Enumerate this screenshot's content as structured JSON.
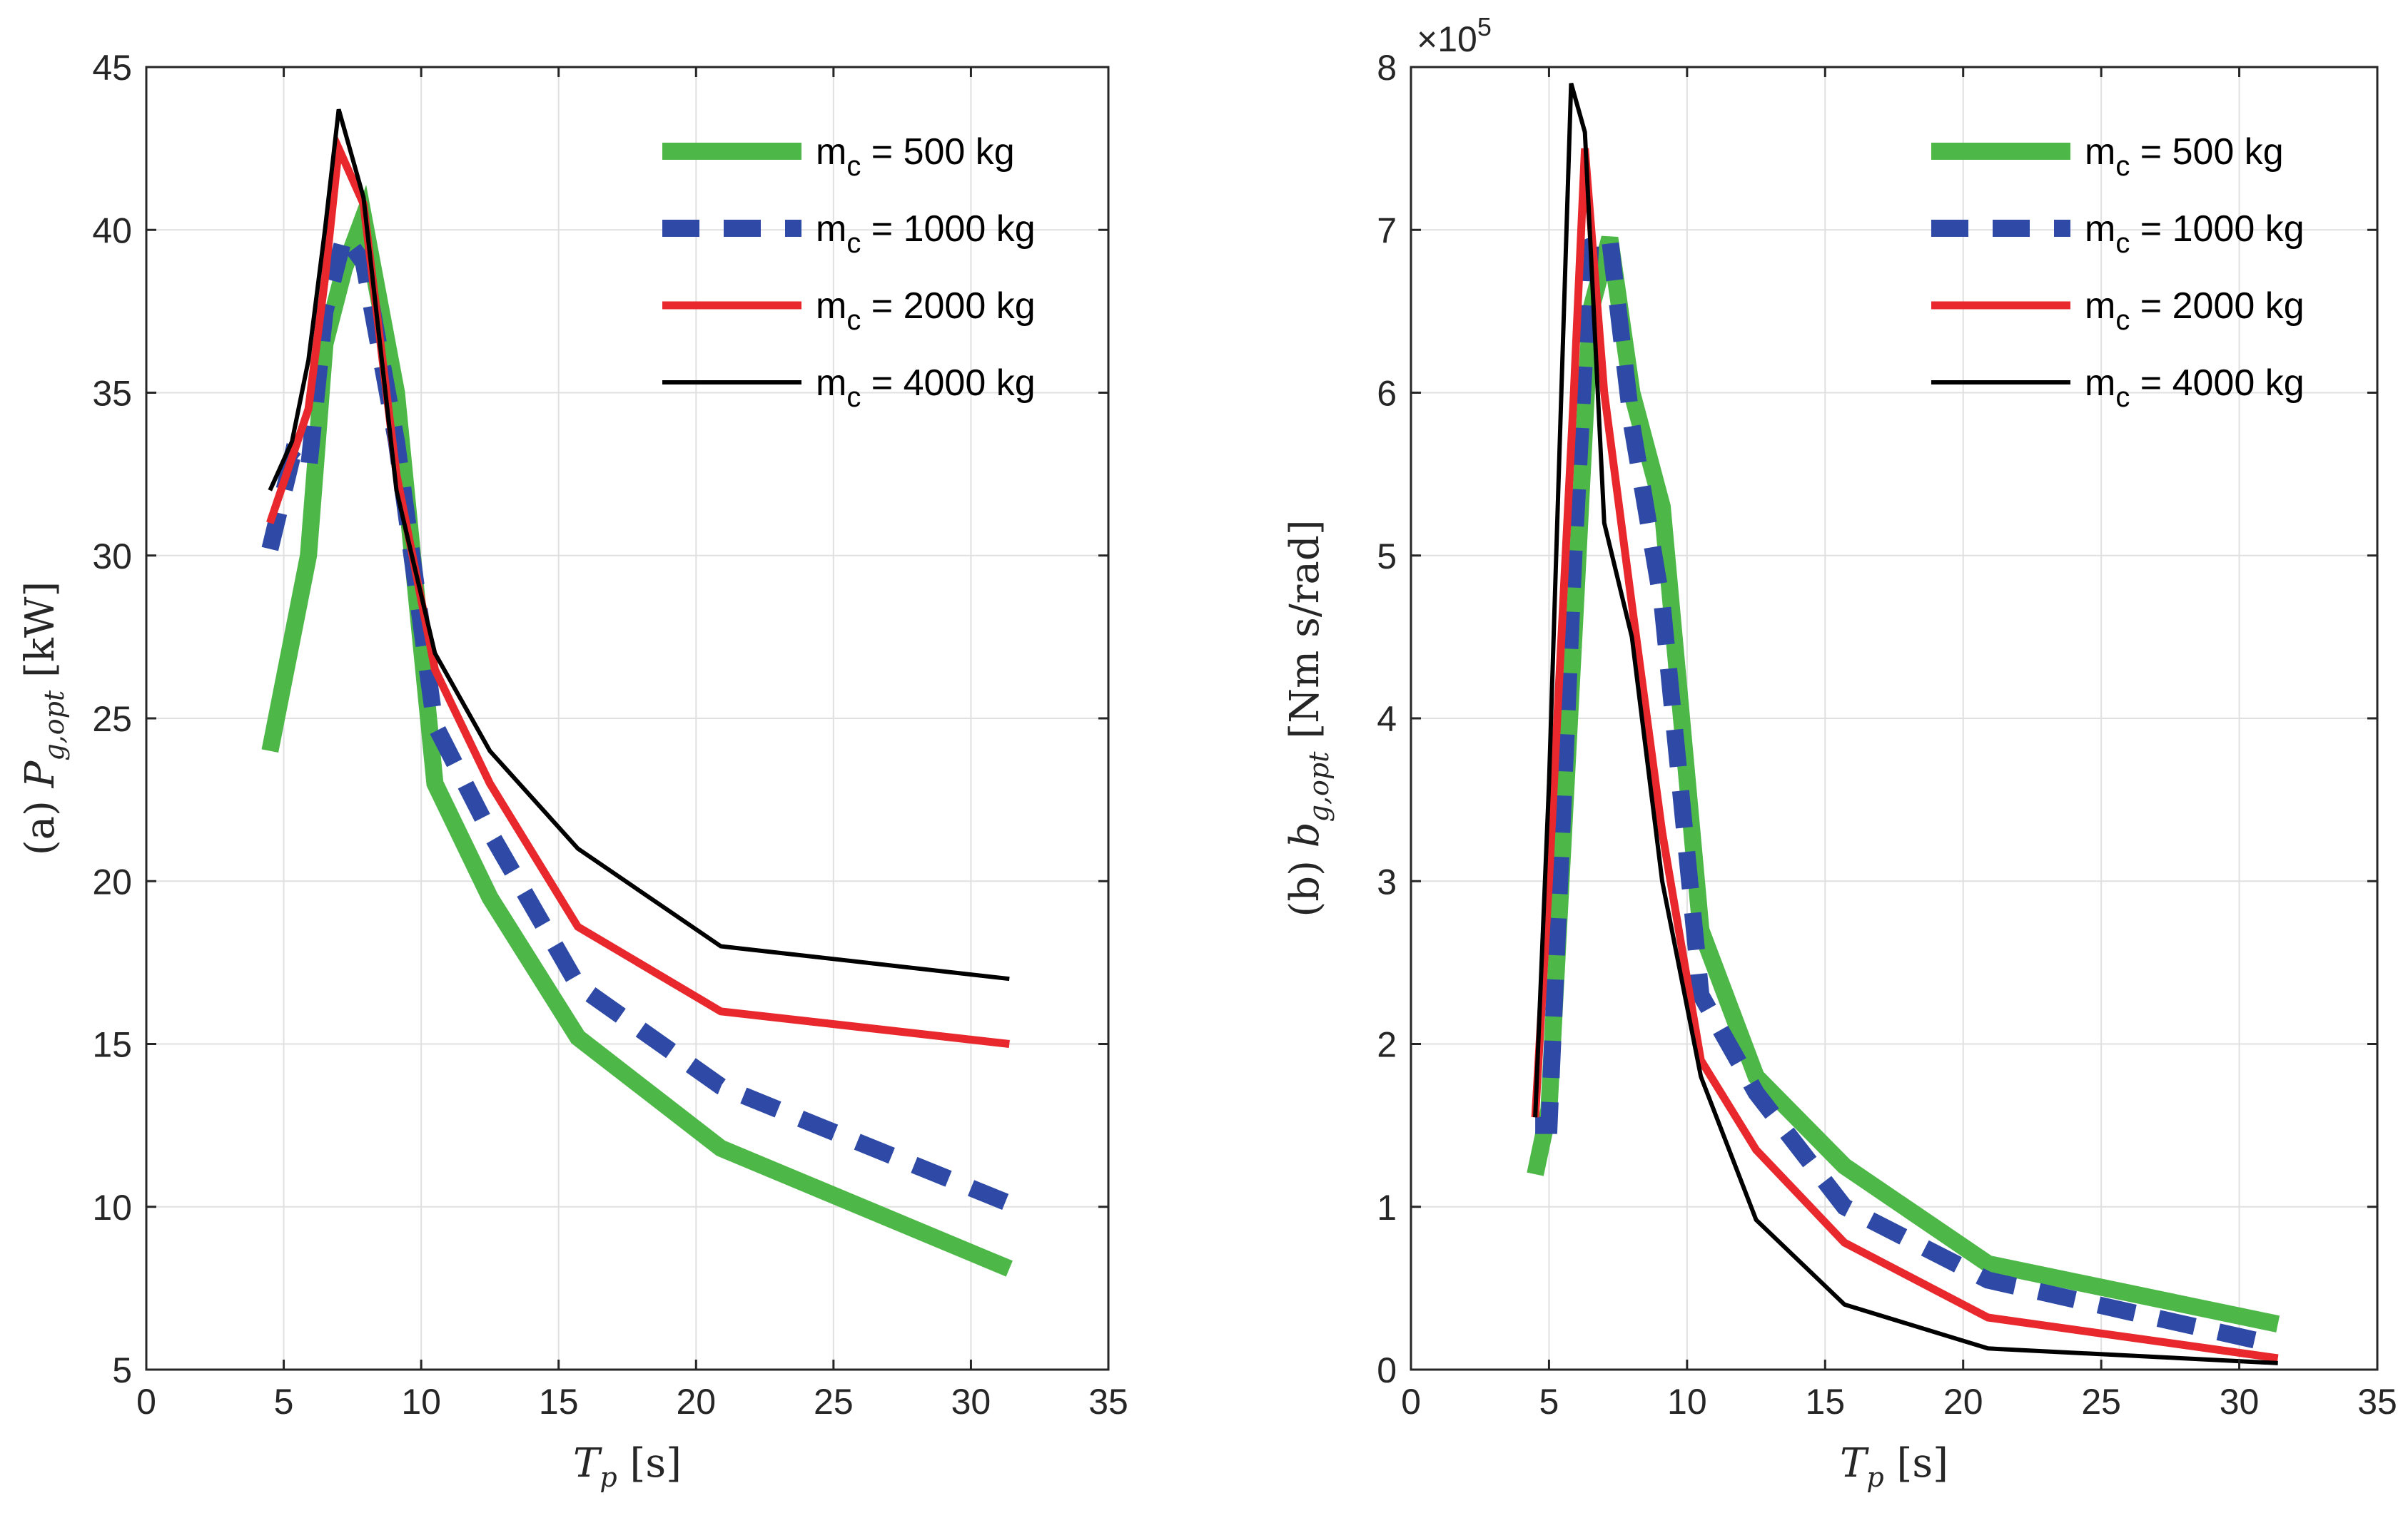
{
  "chart_data": [
    {
      "type": "line",
      "panel": "a",
      "ylabel_parts": [
        "(a) ",
        "P",
        "g,opt",
        " [kW]"
      ],
      "xlabel_parts": [
        "T",
        "p",
        " [s]"
      ],
      "xlim": [
        0,
        35
      ],
      "ylim": [
        5,
        45
      ],
      "xticks": [
        0,
        5,
        10,
        15,
        20,
        25,
        30,
        35
      ],
      "yticks": [
        5,
        10,
        15,
        20,
        25,
        30,
        35,
        40,
        45
      ],
      "grid": true,
      "legend_position": "top-right",
      "series": [
        {
          "name": "m_c = 500 kg",
          "label_main": "m",
          "label_sub": "c",
          "label_rest": " = 500 kg",
          "color": "#4db848",
          "style": "solid",
          "weight": "thick",
          "x": [
            4.5,
            5.9,
            6.5,
            7.2,
            7.9,
            9.1,
            10.5,
            12.5,
            15.7,
            20.9,
            31.4
          ],
          "y": [
            24.0,
            30.0,
            36.5,
            38.8,
            40.4,
            35.0,
            23.0,
            19.5,
            15.2,
            11.8,
            8.1
          ]
        },
        {
          "name": "m_c = 1000 kg",
          "label_main": "m",
          "label_sub": "c",
          "label_rest": " = 1000 kg",
          "color": "#2e4aa6",
          "style": "dashed",
          "weight": "thick",
          "x": [
            4.5,
            5.3,
            5.9,
            6.5,
            7.2,
            7.9,
            9.1,
            10.5,
            12.5,
            15.7,
            20.9,
            31.4
          ],
          "y": [
            30.2,
            33.0,
            32.6,
            37.5,
            39.8,
            39.0,
            33.5,
            24.8,
            21.5,
            16.8,
            13.7,
            10.1
          ]
        },
        {
          "name": "m_c = 2000 kg",
          "label_main": "m",
          "label_sub": "c",
          "label_rest": " = 2000 kg",
          "color": "#e8282c",
          "style": "solid",
          "weight": "medium",
          "x": [
            4.5,
            5.9,
            6.5,
            7.0,
            7.9,
            9.1,
            10.5,
            12.5,
            15.7,
            20.9,
            31.4
          ],
          "y": [
            31.0,
            34.5,
            38.5,
            42.5,
            40.8,
            32.5,
            26.5,
            23.0,
            18.6,
            16.0,
            15.0
          ]
        },
        {
          "name": "m_c = 4000 kg",
          "label_main": "m",
          "label_sub": "c",
          "label_rest": " = 4000 kg",
          "color": "#000000",
          "style": "solid",
          "weight": "thin",
          "x": [
            4.5,
            5.3,
            5.9,
            6.5,
            7.0,
            7.9,
            9.1,
            10.5,
            12.5,
            15.7,
            20.9,
            31.4
          ],
          "y": [
            32.0,
            33.5,
            36.0,
            40.0,
            43.7,
            41.0,
            32.0,
            27.0,
            24.0,
            21.0,
            18.0,
            17.0
          ]
        }
      ]
    },
    {
      "type": "line",
      "panel": "b",
      "ylabel_parts": [
        "(b) ",
        "b",
        "g,opt",
        " [Nm s/rad]"
      ],
      "xlabel_parts": [
        "T",
        "p",
        " [s]"
      ],
      "exponent_prefix": "×10",
      "exponent_power": "5",
      "xlim": [
        0,
        35
      ],
      "ylim": [
        0,
        8
      ],
      "xticks": [
        0,
        5,
        10,
        15,
        20,
        25,
        30,
        35
      ],
      "yticks": [
        0,
        1,
        2,
        3,
        4,
        5,
        6,
        7,
        8
      ],
      "grid": true,
      "legend_position": "top-right",
      "series": [
        {
          "name": "m_c = 500 kg",
          "label_main": "m",
          "label_sub": "c",
          "label_rest": " = 500 kg",
          "color": "#4db848",
          "style": "solid",
          "weight": "thick",
          "x": [
            4.5,
            5.0,
            5.9,
            6.5,
            7.2,
            8.0,
            9.1,
            10.5,
            12.5,
            15.7,
            20.9,
            31.4
          ],
          "y": [
            1.2,
            1.6,
            4.5,
            6.5,
            6.95,
            6.0,
            5.3,
            2.7,
            1.8,
            1.25,
            0.65,
            0.28
          ]
        },
        {
          "name": "m_c = 1000 kg",
          "label_main": "m",
          "label_sub": "c",
          "label_rest": " = 1000 kg",
          "color": "#2e4aa6",
          "style": "dashed",
          "weight": "thick",
          "x": [
            4.5,
            5.0,
            5.9,
            6.5,
            7.2,
            8.0,
            9.1,
            10.5,
            12.5,
            15.7,
            20.9,
            31.4
          ],
          "y": [
            1.5,
            1.5,
            5.0,
            6.9,
            6.95,
            5.8,
            4.7,
            2.3,
            1.7,
            1.0,
            0.55,
            0.15
          ]
        },
        {
          "name": "m_c = 2000 kg",
          "label_main": "m",
          "label_sub": "c",
          "label_rest": " = 2000 kg",
          "color": "#e8282c",
          "style": "solid",
          "weight": "medium",
          "x": [
            4.5,
            5.0,
            5.9,
            6.3,
            7.0,
            8.0,
            9.1,
            10.5,
            12.5,
            15.7,
            20.9,
            31.4
          ],
          "y": [
            1.55,
            3.0,
            6.0,
            7.5,
            6.0,
            4.7,
            3.3,
            1.9,
            1.35,
            0.78,
            0.32,
            0.07
          ]
        },
        {
          "name": "m_c = 4000 kg",
          "label_main": "m",
          "label_sub": "c",
          "label_rest": " = 4000 kg",
          "color": "#000000",
          "style": "solid",
          "weight": "thin",
          "x": [
            4.5,
            5.0,
            5.8,
            6.3,
            7.0,
            8.0,
            9.1,
            10.5,
            12.5,
            15.7,
            20.9,
            31.4
          ],
          "y": [
            1.55,
            3.6,
            7.9,
            7.6,
            5.2,
            4.5,
            3.0,
            1.8,
            0.92,
            0.4,
            0.13,
            0.04
          ]
        }
      ]
    }
  ]
}
